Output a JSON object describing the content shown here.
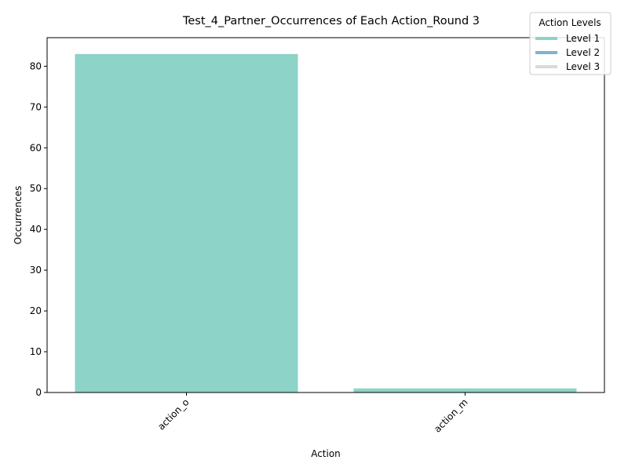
{
  "chart_data": {
    "type": "bar",
    "title": "Test_4_Partner_Occurrences of Each Action_Round 3",
    "xlabel": "Action",
    "ylabel": "Occurrences",
    "categories": [
      "action_o",
      "action_m"
    ],
    "values": [
      83,
      1
    ],
    "bar_colors": [
      "#8dd3c7",
      "#8dd3c7"
    ],
    "ylim": [
      0,
      87
    ],
    "yticks": [
      0,
      10,
      20,
      30,
      40,
      50,
      60,
      70,
      80
    ],
    "grid": false,
    "legend": {
      "title": "Action Levels",
      "placement": "top-right",
      "entries": [
        {
          "label": "Level 1",
          "color": "#8dd3c7"
        },
        {
          "label": "Level 2",
          "color": "#80b1d3"
        },
        {
          "label": "Level 3",
          "color": "#d9d9d9"
        }
      ]
    }
  }
}
